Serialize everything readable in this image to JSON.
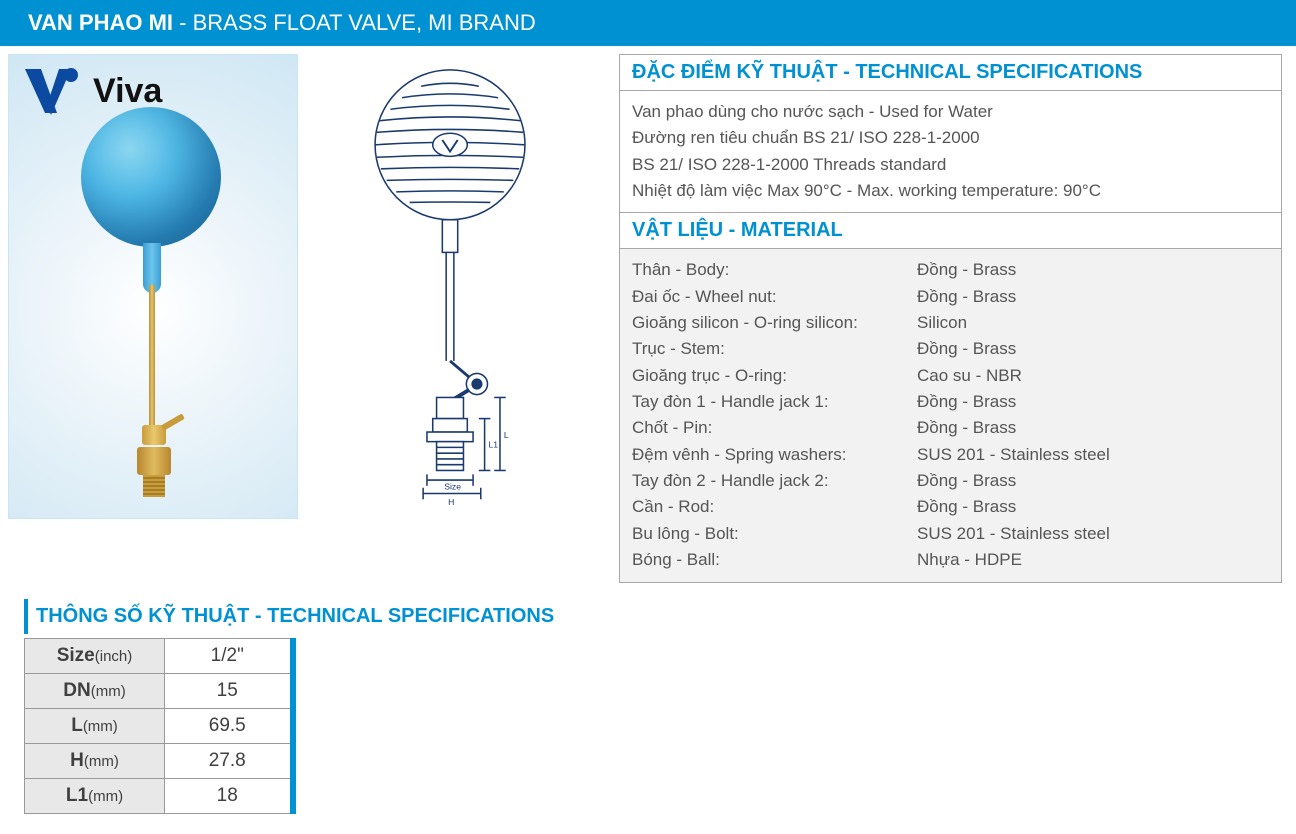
{
  "header": {
    "title_bold": "VAN PHAO MI",
    "title_sep": " - ",
    "title_light": "BRASS FLOAT VALVE, MI BRAND"
  },
  "logo": {
    "text": "Viva",
    "primary_color": "#0b4aa0",
    "dot_color": "#0b4aa0"
  },
  "tech_spec_head": "ĐẶC ĐIỂM KỸ THUẬT - TECHNICAL SPECIFICATIONS",
  "tech_spec_lines": [
    "Van phao dùng cho nước sạch - Used for Water",
    "Đường ren tiêu chuẩn BS 21/ ISO 228-1-2000",
    "BS 21/ ISO 228-1-2000 Threads standard",
    "Nhiệt độ làm việc Max 90°C - Max. working temperature: 90°C"
  ],
  "material_head": "VẬT LIỆU - MATERIAL",
  "materials": [
    {
      "label": "Thân - Body:",
      "value": "Đồng - Brass"
    },
    {
      "label": "Đai ốc - Wheel nut:",
      "value": "Đồng - Brass"
    },
    {
      "label": "Gioăng silicon - O-ring silicon:",
      "value": "Silicon"
    },
    {
      "label": "Trục - Stem:",
      "value": "Đồng - Brass"
    },
    {
      "label": "Gioăng trục - O-ring:",
      "value": "Cao su - NBR"
    },
    {
      "label": "Tay đòn 1 - Handle jack 1:",
      "value": "Đồng - Brass"
    },
    {
      "label": "Chốt - Pin:",
      "value": "Đồng - Brass"
    },
    {
      "label": "Đệm vênh - Spring washers:",
      "value": "SUS 201 - Stainless steel"
    },
    {
      "label": "Tay đòn 2 - Handle jack 2:",
      "value": "Đồng - Brass"
    },
    {
      "label": "Cần - Rod:",
      "value": "Đồng - Brass"
    },
    {
      "label": "Bu lông - Bolt:",
      "value": "SUS 201 - Stainless steel"
    },
    {
      "label": "Bóng -  Ball:",
      "value": "Nhựa - HDPE"
    }
  ],
  "spec_table_head": "THÔNG SỐ KỸ THUẬT - TECHNICAL SPECIFICATIONS",
  "spec_rows": [
    {
      "label": "Size",
      "unit": "(inch)",
      "value": "1/2\""
    },
    {
      "label": "DN",
      "unit": "(mm)",
      "value": "15"
    },
    {
      "label": "L",
      "unit": "(mm)",
      "value": "69.5"
    },
    {
      "label": "H",
      "unit": "(mm)",
      "value": "27.8"
    },
    {
      "label": "L1",
      "unit": "(mm)",
      "value": "18"
    }
  ],
  "drawing": {
    "stroke": "#1a3a6e",
    "dim_labels": {
      "size": "Size",
      "h": "H",
      "l1": "L1",
      "l": "L"
    }
  },
  "colors": {
    "accent": "#0091d3",
    "brass": "#c99c3a",
    "ball_blue": "#4eb8e6"
  }
}
